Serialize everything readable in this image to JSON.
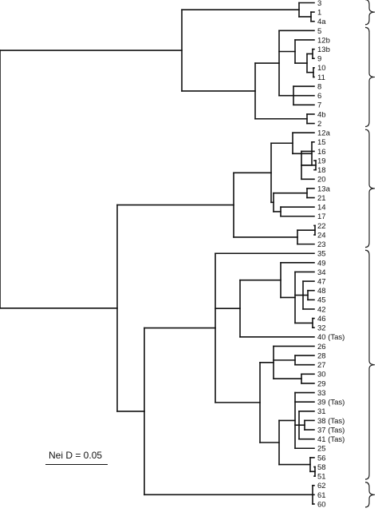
{
  "leaves": [
    "3",
    "1",
    "4a",
    "5",
    "12b",
    "13b",
    "9",
    "10",
    "11",
    "8",
    "6",
    "7",
    "4b",
    "2",
    "12a",
    "15",
    "16",
    "19",
    "18",
    "20",
    "13a",
    "21",
    "14",
    "17",
    "22",
    "24",
    "23",
    "35",
    "49",
    "34",
    "47",
    "48",
    "45",
    "42",
    "46",
    "32",
    "40 (Tas)",
    "26",
    "28",
    "27",
    "30",
    "29",
    "33",
    "39 (Tas)",
    "31",
    "38 (Tas)",
    "37 (Tas)",
    "41 (Tas)",
    "25",
    "56",
    "58",
    "51",
    "62",
    "61",
    "60"
  ],
  "scale": {
    "label": "Nei D  = 0.05"
  }
}
